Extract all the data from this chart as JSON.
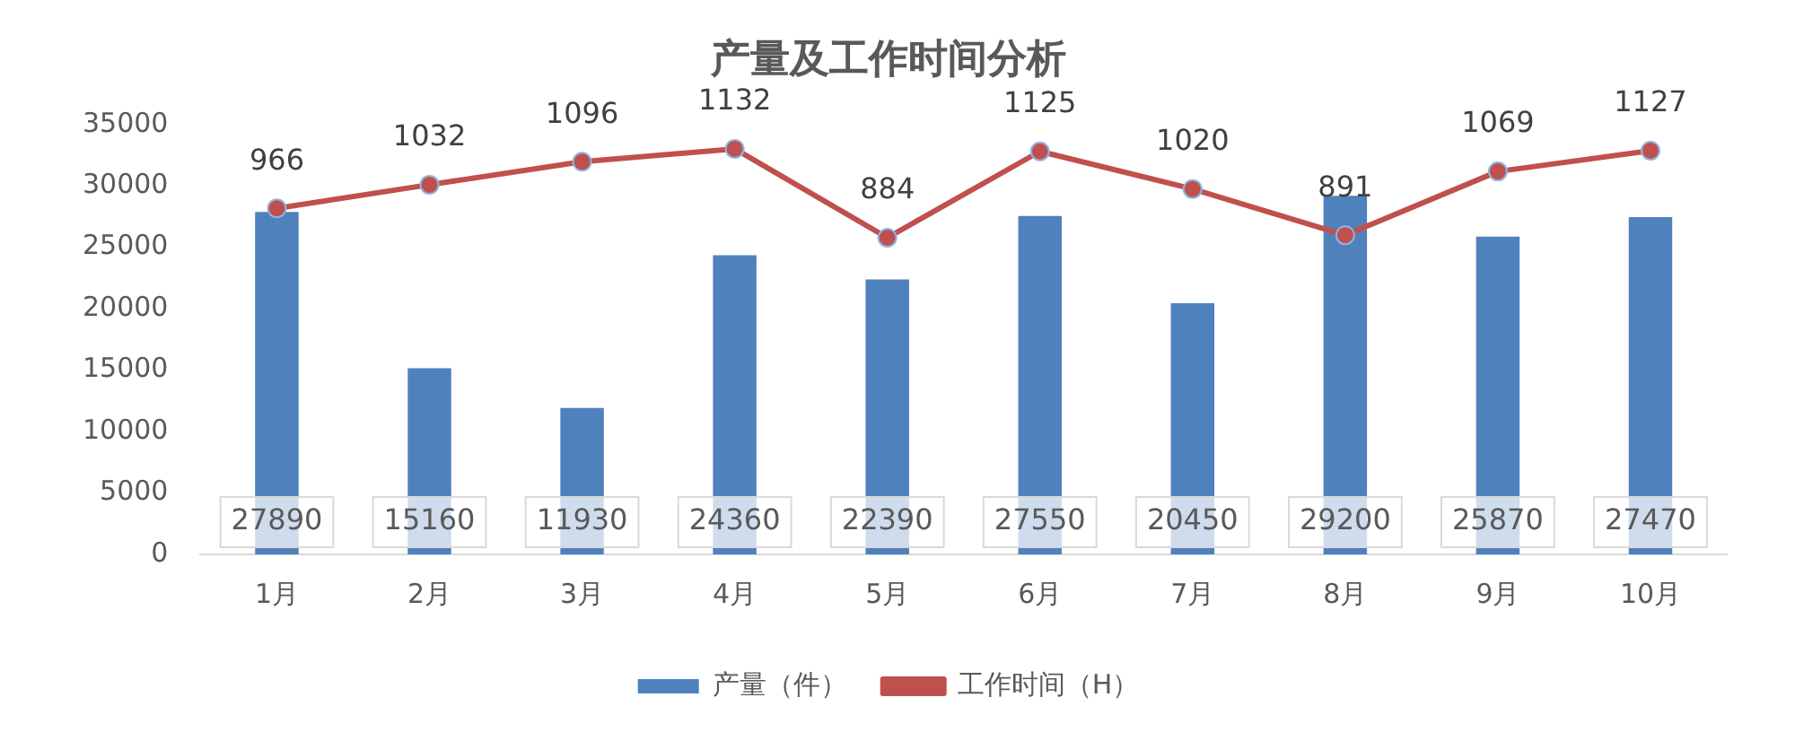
{
  "chart_data": {
    "type": "bar",
    "title": "产量及工作时间分析",
    "categories": [
      "1月",
      "2月",
      "3月",
      "4月",
      "5月",
      "6月",
      "7月",
      "8月",
      "9月",
      "10月"
    ],
    "series": [
      {
        "name": "产量（件）",
        "color": "#4f81bd",
        "values": [
          27890,
          15160,
          11930,
          24360,
          22390,
          27550,
          20450,
          29200,
          25870,
          27470
        ]
      },
      {
        "name": "工作时间（H）",
        "type": "line",
        "axis": "y2",
        "color": "#c0504d",
        "values": [
          966,
          1032,
          1096,
          1132,
          884,
          1125,
          1020,
          891,
          1069,
          1127
        ]
      }
    ],
    "ylim": [
      0,
      35000
    ],
    "yticks": [
      0,
      5000,
      10000,
      15000,
      20000,
      25000,
      30000,
      35000
    ],
    "grid": false,
    "legend": "bottom",
    "marker": "circle",
    "line_style": "solid",
    "data_labels": true
  }
}
